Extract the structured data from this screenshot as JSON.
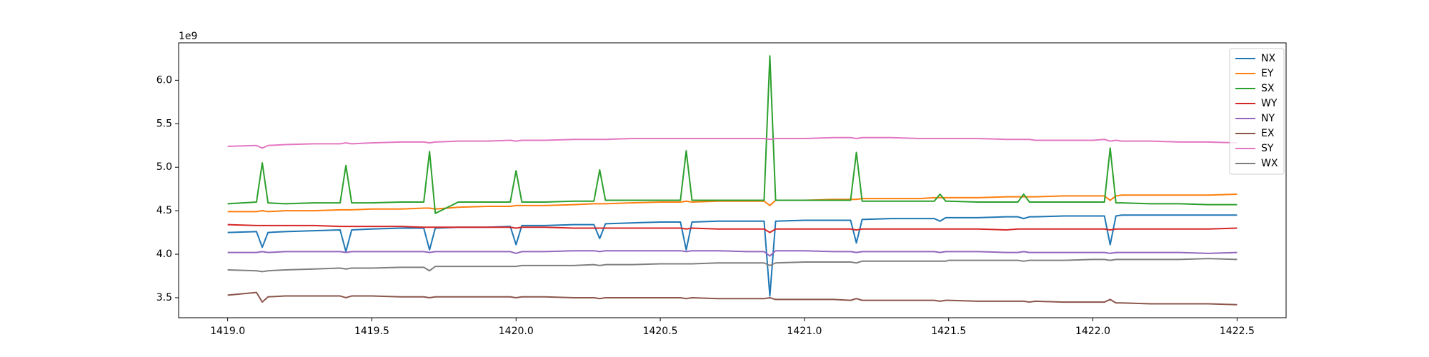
{
  "chart_data": {
    "type": "line",
    "y_offset_label": "1e9",
    "x": [
      1419.0,
      1419.1,
      1419.12,
      1419.14,
      1419.2,
      1419.3,
      1419.39,
      1419.41,
      1419.43,
      1419.5,
      1419.6,
      1419.68,
      1419.7,
      1419.72,
      1419.8,
      1419.9,
      1419.98,
      1420.0,
      1420.02,
      1420.1,
      1420.2,
      1420.27,
      1420.29,
      1420.31,
      1420.4,
      1420.5,
      1420.57,
      1420.59,
      1420.61,
      1420.7,
      1420.8,
      1420.86,
      1420.88,
      1420.9,
      1421.0,
      1421.1,
      1421.16,
      1421.18,
      1421.2,
      1421.3,
      1421.4,
      1421.45,
      1421.47,
      1421.49,
      1421.5,
      1421.6,
      1421.7,
      1421.74,
      1421.76,
      1421.78,
      1421.8,
      1421.9,
      1422.0,
      1422.04,
      1422.06,
      1422.08,
      1422.1,
      1422.2,
      1422.3,
      1422.4,
      1422.5
    ],
    "series": [
      {
        "name": "NX",
        "color": "#1f77b4",
        "values": [
          4.25,
          4.26,
          4.08,
          4.25,
          4.26,
          4.27,
          4.28,
          4.03,
          4.28,
          4.29,
          4.3,
          4.3,
          4.05,
          4.3,
          4.31,
          4.31,
          4.32,
          4.11,
          4.33,
          4.33,
          4.34,
          4.34,
          4.18,
          4.35,
          4.36,
          4.37,
          4.37,
          4.05,
          4.37,
          4.38,
          4.38,
          4.38,
          3.52,
          4.38,
          4.39,
          4.39,
          4.39,
          4.13,
          4.4,
          4.41,
          4.41,
          4.41,
          4.38,
          4.42,
          4.42,
          4.42,
          4.43,
          4.43,
          4.41,
          4.43,
          4.43,
          4.44,
          4.44,
          4.44,
          4.11,
          4.44,
          4.45,
          4.45,
          4.45,
          4.45,
          4.45
        ]
      },
      {
        "name": "EY",
        "color": "#ff7f0e",
        "values": [
          4.49,
          4.49,
          4.5,
          4.49,
          4.5,
          4.5,
          4.51,
          4.51,
          4.51,
          4.52,
          4.52,
          4.53,
          4.53,
          4.52,
          4.54,
          4.55,
          4.55,
          4.56,
          4.56,
          4.56,
          4.57,
          4.58,
          4.58,
          4.58,
          4.59,
          4.6,
          4.6,
          4.61,
          4.6,
          4.61,
          4.61,
          4.61,
          4.56,
          4.62,
          4.62,
          4.63,
          4.63,
          4.63,
          4.64,
          4.64,
          4.64,
          4.65,
          4.65,
          4.65,
          4.65,
          4.65,
          4.66,
          4.66,
          4.66,
          4.66,
          4.66,
          4.67,
          4.67,
          4.67,
          4.62,
          4.67,
          4.68,
          4.68,
          4.68,
          4.68,
          4.69
        ]
      },
      {
        "name": "SX",
        "color": "#2ca02c",
        "values": [
          4.58,
          4.6,
          5.05,
          4.59,
          4.58,
          4.59,
          4.59,
          5.02,
          4.59,
          4.59,
          4.6,
          4.6,
          5.18,
          4.47,
          4.6,
          4.6,
          4.6,
          4.96,
          4.6,
          4.6,
          4.61,
          4.61,
          4.97,
          4.62,
          4.62,
          4.62,
          4.62,
          5.19,
          4.62,
          4.62,
          4.62,
          4.62,
          6.28,
          4.62,
          4.62,
          4.62,
          4.62,
          5.17,
          4.61,
          4.61,
          4.61,
          4.61,
          4.69,
          4.61,
          4.61,
          4.6,
          4.6,
          4.6,
          4.69,
          4.6,
          4.6,
          4.6,
          4.6,
          4.6,
          5.22,
          4.59,
          4.59,
          4.58,
          4.58,
          4.57,
          4.57
        ]
      },
      {
        "name": "WY",
        "color": "#d62728",
        "values": [
          4.34,
          4.33,
          4.33,
          4.33,
          4.33,
          4.33,
          4.32,
          4.32,
          4.32,
          4.32,
          4.32,
          4.31,
          4.31,
          4.31,
          4.31,
          4.31,
          4.31,
          4.3,
          4.31,
          4.31,
          4.3,
          4.3,
          4.3,
          4.3,
          4.3,
          4.3,
          4.3,
          4.29,
          4.3,
          4.29,
          4.29,
          4.29,
          4.25,
          4.29,
          4.29,
          4.29,
          4.29,
          4.28,
          4.29,
          4.29,
          4.29,
          4.29,
          4.29,
          4.29,
          4.29,
          4.29,
          4.28,
          4.29,
          4.29,
          4.29,
          4.29,
          4.29,
          4.29,
          4.29,
          4.28,
          4.29,
          4.29,
          4.29,
          4.29,
          4.29,
          4.3
        ]
      },
      {
        "name": "NY",
        "color": "#9467bd",
        "values": [
          4.02,
          4.02,
          4.03,
          4.02,
          4.03,
          4.03,
          4.03,
          4.02,
          4.03,
          4.03,
          4.03,
          4.03,
          4.02,
          4.03,
          4.03,
          4.03,
          4.03,
          4.01,
          4.03,
          4.03,
          4.04,
          4.04,
          4.03,
          4.04,
          4.04,
          4.04,
          4.04,
          4.03,
          4.04,
          4.04,
          4.03,
          4.03,
          3.98,
          4.04,
          4.04,
          4.03,
          4.03,
          4.02,
          4.03,
          4.03,
          4.03,
          4.03,
          4.02,
          4.03,
          4.03,
          4.03,
          4.02,
          4.02,
          4.03,
          4.02,
          4.02,
          4.02,
          4.02,
          4.02,
          4.01,
          4.02,
          4.02,
          4.02,
          4.02,
          4.01,
          4.02
        ]
      },
      {
        "name": "EX",
        "color": "#8c564b",
        "values": [
          3.53,
          3.56,
          3.45,
          3.51,
          3.52,
          3.52,
          3.52,
          3.5,
          3.52,
          3.52,
          3.51,
          3.51,
          3.5,
          3.51,
          3.51,
          3.51,
          3.51,
          3.5,
          3.51,
          3.51,
          3.5,
          3.5,
          3.49,
          3.5,
          3.5,
          3.5,
          3.5,
          3.49,
          3.5,
          3.49,
          3.49,
          3.49,
          3.5,
          3.48,
          3.48,
          3.48,
          3.47,
          3.49,
          3.47,
          3.47,
          3.47,
          3.47,
          3.46,
          3.47,
          3.47,
          3.46,
          3.46,
          3.46,
          3.46,
          3.45,
          3.46,
          3.45,
          3.45,
          3.45,
          3.48,
          3.44,
          3.44,
          3.43,
          3.43,
          3.43,
          3.42
        ]
      },
      {
        "name": "SY",
        "color": "#e377c2",
        "values": [
          5.24,
          5.25,
          5.22,
          5.25,
          5.26,
          5.27,
          5.27,
          5.28,
          5.27,
          5.28,
          5.29,
          5.29,
          5.28,
          5.29,
          5.3,
          5.3,
          5.31,
          5.3,
          5.31,
          5.31,
          5.32,
          5.32,
          5.32,
          5.32,
          5.33,
          5.33,
          5.33,
          5.33,
          5.33,
          5.33,
          5.33,
          5.33,
          5.32,
          5.33,
          5.33,
          5.34,
          5.34,
          5.33,
          5.34,
          5.34,
          5.33,
          5.33,
          5.33,
          5.33,
          5.33,
          5.33,
          5.32,
          5.32,
          5.32,
          5.32,
          5.31,
          5.31,
          5.31,
          5.32,
          5.3,
          5.31,
          5.3,
          5.3,
          5.29,
          5.29,
          5.28
        ]
      },
      {
        "name": "WX",
        "color": "#7f7f7f",
        "values": [
          3.82,
          3.81,
          3.8,
          3.81,
          3.82,
          3.83,
          3.84,
          3.83,
          3.84,
          3.84,
          3.85,
          3.85,
          3.81,
          3.86,
          3.86,
          3.86,
          3.86,
          3.86,
          3.87,
          3.87,
          3.87,
          3.88,
          3.87,
          3.88,
          3.88,
          3.89,
          3.89,
          3.89,
          3.89,
          3.9,
          3.9,
          3.9,
          3.87,
          3.9,
          3.91,
          3.91,
          3.91,
          3.9,
          3.92,
          3.92,
          3.92,
          3.92,
          3.92,
          3.92,
          3.93,
          3.93,
          3.93,
          3.93,
          3.92,
          3.93,
          3.93,
          3.93,
          3.94,
          3.94,
          3.93,
          3.94,
          3.94,
          3.94,
          3.94,
          3.95,
          3.94
        ]
      }
    ],
    "xlim": [
      1418.83,
      1422.67
    ],
    "xticks": [
      {
        "value": 1419.0,
        "label": "1419.0"
      },
      1419.5,
      {
        "value": 1420.0,
        "label": "1420.0"
      },
      1420.5,
      {
        "value": 1421.0,
        "label": "1421.0"
      },
      1421.5,
      {
        "value": 1422.0,
        "label": "1422.0"
      },
      1422.5
    ],
    "ylim": [
      3.27,
      6.43
    ],
    "yticks": [
      3.5,
      {
        "value": 4.0,
        "label": "4.0"
      },
      4.5,
      {
        "value": 5.0,
        "label": "5.0"
      },
      5.5,
      {
        "value": 6.0,
        "label": "6.0"
      }
    ],
    "grid": false,
    "legend": "upper right"
  }
}
